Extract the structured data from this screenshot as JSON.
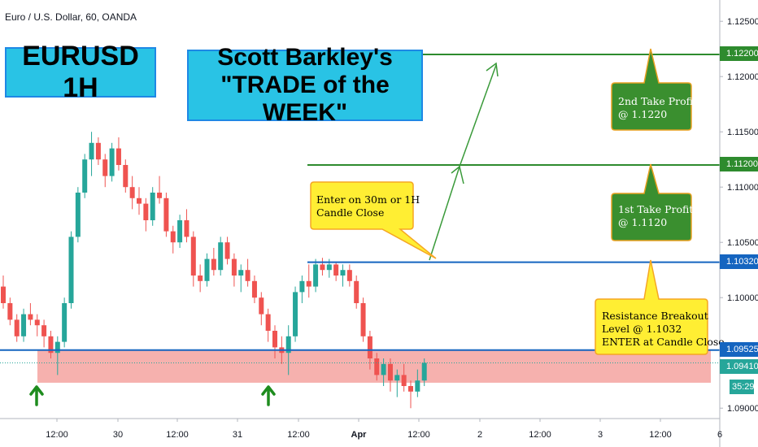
{
  "header": {
    "symbol_line": "Euro / U.S. Dollar, 60, OANDA"
  },
  "title_box": {
    "text": "EURUSD 1H"
  },
  "headline_box": {
    "line1": "Scott Barkley's",
    "line2": "\"TRADE of the WEEK\""
  },
  "callouts": {
    "entry": {
      "line1": "Enter on 30m or 1H",
      "line2": "Candle Close"
    },
    "tp2": {
      "line1": "2nd Take Profit",
      "line2": "@ 1.1220"
    },
    "tp1": {
      "line1": "1st Take Profit",
      "line2": "@ 1.1120"
    },
    "resistance": {
      "line1": "Resistance Breakout",
      "line2": "Level @ 1.1032",
      "line3": "ENTER at Candle Close"
    }
  },
  "price_badges": {
    "tp2": "1.12200",
    "tp1": "1.11200",
    "resistance": "1.10320",
    "support": "1.09525",
    "last": "1.09410",
    "countdown": "35:29"
  },
  "colors": {
    "bull": "#26a69a",
    "bear": "#ef5350",
    "green_line": "#2e8b2e",
    "blue_line": "#1565c0",
    "zone": "#f4a3a0",
    "callout_green": "#3a8f2f",
    "callout_yellow": "#ffee33",
    "box_cyan": "#29c3e5"
  },
  "chart_data": {
    "type": "candlestick",
    "y_axis": {
      "min": 1.0895,
      "max": 1.1255,
      "ticks": [
        "1.12500",
        "1.12000",
        "1.11500",
        "1.11000",
        "1.10500",
        "1.10000",
        "1.09000"
      ]
    },
    "x_axis": {
      "ticks": [
        "12:00",
        "30",
        "12:00",
        "31",
        "12:00",
        "Apr",
        "12:00",
        "2",
        "12:00",
        "3",
        "12:00",
        "6"
      ]
    },
    "levels": [
      {
        "label": "2nd Take Profit",
        "price": 1.122,
        "color": "green"
      },
      {
        "label": "1st Take Profit",
        "price": 1.112,
        "color": "green"
      },
      {
        "label": "Resistance Breakout",
        "price": 1.1032,
        "color": "blue"
      },
      {
        "price": 1.09525,
        "color": "blue"
      }
    ],
    "zone": {
      "from": 1.0923,
      "to": 1.0953
    },
    "candles": [
      [
        1.101,
        1.102,
        1.099,
        1.0995
      ],
      [
        1.0995,
        1.1,
        1.0975,
        1.098
      ],
      [
        1.098,
        1.0985,
        1.096,
        1.0965
      ],
      [
        1.0965,
        1.099,
        1.096,
        1.0985
      ],
      [
        1.0985,
        1.0995,
        1.0975,
        1.098
      ],
      [
        1.098,
        1.0985,
        1.0965,
        1.0975
      ],
      [
        1.0975,
        1.098,
        1.0955,
        1.0965
      ],
      [
        1.0965,
        1.097,
        1.0945,
        1.095
      ],
      [
        1.095,
        1.0965,
        1.093,
        1.096
      ],
      [
        1.096,
        1.1,
        1.0955,
        1.0995
      ],
      [
        1.0995,
        1.106,
        1.099,
        1.1055
      ],
      [
        1.1055,
        1.11,
        1.105,
        1.1095
      ],
      [
        1.1095,
        1.113,
        1.109,
        1.1125
      ],
      [
        1.1125,
        1.115,
        1.111,
        1.114
      ],
      [
        1.114,
        1.1145,
        1.112,
        1.1125
      ],
      [
        1.1125,
        1.113,
        1.11,
        1.111
      ],
      [
        1.111,
        1.114,
        1.1105,
        1.1135
      ],
      [
        1.1135,
        1.1145,
        1.1115,
        1.112
      ],
      [
        1.112,
        1.1125,
        1.1095,
        1.11
      ],
      [
        1.11,
        1.111,
        1.108,
        1.109
      ],
      [
        1.109,
        1.11,
        1.1075,
        1.1085
      ],
      [
        1.1085,
        1.109,
        1.106,
        1.107
      ],
      [
        1.107,
        1.11,
        1.1065,
        1.1095
      ],
      [
        1.1095,
        1.111,
        1.1085,
        1.109
      ],
      [
        1.109,
        1.1095,
        1.1055,
        1.106
      ],
      [
        1.106,
        1.1065,
        1.104,
        1.105
      ],
      [
        1.105,
        1.1075,
        1.1045,
        1.107
      ],
      [
        1.107,
        1.108,
        1.105,
        1.1055
      ],
      [
        1.1055,
        1.106,
        1.101,
        1.102
      ],
      [
        1.102,
        1.103,
        1.1005,
        1.1015
      ],
      [
        1.1015,
        1.104,
        1.101,
        1.1035
      ],
      [
        1.1035,
        1.1045,
        1.102,
        1.1025
      ],
      [
        1.1025,
        1.1055,
        1.102,
        1.105
      ],
      [
        1.105,
        1.1055,
        1.103,
        1.1035
      ],
      [
        1.1035,
        1.104,
        1.101,
        1.102
      ],
      [
        1.102,
        1.103,
        1.1005,
        1.1025
      ],
      [
        1.1025,
        1.1035,
        1.101,
        1.1015
      ],
      [
        1.1015,
        1.102,
        1.0995,
        1.1
      ],
      [
        1.1,
        1.1005,
        1.0975,
        1.0985
      ],
      [
        1.0985,
        1.099,
        1.096,
        1.097
      ],
      [
        1.097,
        1.0975,
        1.0945,
        1.0955
      ],
      [
        1.0955,
        1.0965,
        1.094,
        1.095
      ],
      [
        1.095,
        1.0975,
        1.093,
        1.0965
      ],
      [
        1.0965,
        1.101,
        1.096,
        1.1005
      ],
      [
        1.1005,
        1.102,
        1.0995,
        1.1015
      ],
      [
        1.1015,
        1.103,
        1.1,
        1.101
      ],
      [
        1.101,
        1.1035,
        1.1005,
        1.103
      ],
      [
        1.103,
        1.1036,
        1.102,
        1.1025
      ],
      [
        1.1025,
        1.1035,
        1.1018,
        1.103
      ],
      [
        1.103,
        1.1032,
        1.1015,
        1.102
      ],
      [
        1.102,
        1.103,
        1.101,
        1.1025
      ],
      [
        1.1025,
        1.103,
        1.101,
        1.1015
      ],
      [
        1.1015,
        1.102,
        1.099,
        1.0995
      ],
      [
        1.0995,
        1.1,
        1.096,
        1.0965
      ],
      [
        1.0965,
        1.097,
        1.0935,
        1.0945
      ],
      [
        1.0945,
        1.095,
        1.0925,
        1.093
      ],
      [
        1.093,
        1.0945,
        1.092,
        1.094
      ],
      [
        1.094,
        1.0945,
        1.0915,
        1.0925
      ],
      [
        1.0925,
        1.0935,
        1.091,
        1.093
      ],
      [
        1.093,
        1.094,
        1.0915,
        1.092
      ],
      [
        1.092,
        1.0925,
        1.09,
        1.0915
      ],
      [
        1.0915,
        1.0935,
        1.091,
        1.0925
      ],
      [
        1.0925,
        1.0945,
        1.092,
        1.0941
      ]
    ]
  }
}
